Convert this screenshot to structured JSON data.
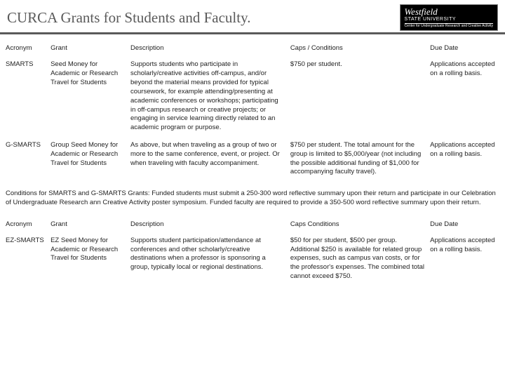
{
  "header": {
    "title": "CURCA Grants for Students and Faculty.",
    "logo": {
      "line1": "Westfield",
      "line2": "STATE UNIVERSITY",
      "line3": "Center for Undergraduate Research and Creative Activity"
    }
  },
  "table1": {
    "headers": {
      "acronym": "Acronym",
      "grant": "Grant",
      "description": "Description",
      "caps": "Caps / Conditions",
      "due": "Due Date"
    },
    "rows": [
      {
        "acronym": "SMARTS",
        "grant": "Seed Money for Academic or Research Travel for Students",
        "description": "Supports students who participate in scholarly/creative activities off-campus, and/or beyond the material means provided for typical coursework, for example attending/presenting at academic conferences or workshops; participating in off-campus research or creative projects; or engaging in service learning directly related to an academic program or purpose.",
        "caps": "$750 per student.",
        "due": "Applications accepted on a rolling basis."
      },
      {
        "acronym": "G-SMARTS",
        "grant": "Group Seed Money for Academic or Research Travel for Students",
        "description": "As above, but when traveling as a group of two or more to the same conference, event, or project. Or when traveling with faculty accompaniment.",
        "caps": "$750 per student. The total amount for the group is limited to $5,000/year (not including the possible additional funding of $1,000 for accompanying faculty travel).",
        "due": "Applications accepted on a rolling basis."
      }
    ]
  },
  "conditions": "Conditions for SMARTS and G-SMARTS Grants: Funded students must submit a 250-300 word reflective summary upon their return and participate in our Celebration of Undergraduate Research ann Creative Activity poster symposium. Funded faculty are required to provide a 350-500 word reflective summary upon their return.",
  "table2": {
    "headers": {
      "acronym": "Acronym",
      "grant": "Grant",
      "description": "Description",
      "caps": "Caps Conditions",
      "due": "Due Date"
    },
    "rows": [
      {
        "acronym": "EZ-SMARTS",
        "grant": "EZ Seed Money for Academic or Research Travel for Students",
        "description": "Supports student participation/attendance at conferences and other scholarly/creative destinations when a professor is sponsoring a group, typically local or regional destinations.",
        "caps": "$50 for per student, $500 per group. Additional $250 is available for related group expenses, such as campus van costs, or for the professor's expenses. The combined total cannot exceed $750.",
        "due": "Applications accepted on a rolling basis."
      }
    ]
  },
  "style": {
    "background": "#4a4a4a",
    "slide_bg": "#ffffff",
    "title_color": "#5a5a5a",
    "header_border": "#5a5a5a",
    "text_color": "#222222",
    "font_size_title": 21,
    "font_size_body": 9.5,
    "col_widths_pct": [
      9,
      16,
      32,
      28,
      15
    ]
  }
}
